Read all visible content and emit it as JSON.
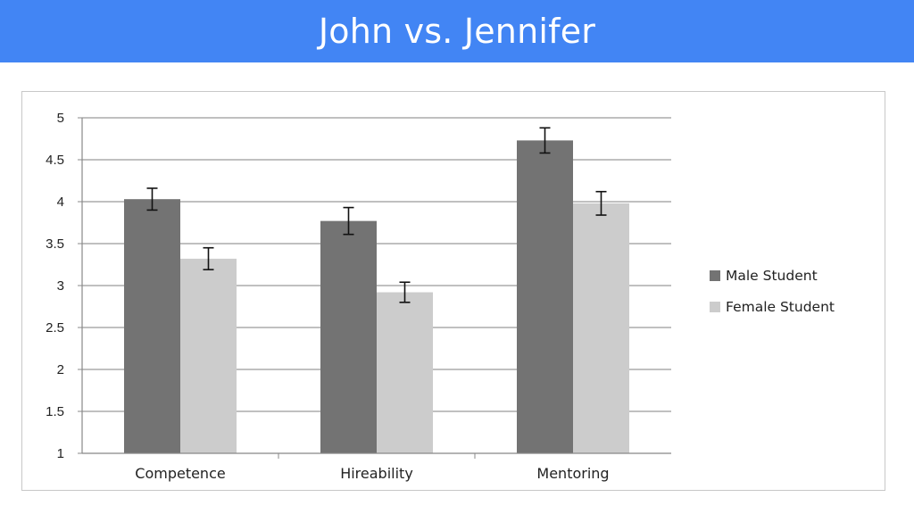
{
  "slide": {
    "title": "John vs. Jennifer",
    "accent_color": "#4285f4"
  },
  "chart_data": {
    "type": "bar",
    "categories": [
      "Competence",
      "Hireability",
      "Mentoring"
    ],
    "series": [
      {
        "name": "Male Student",
        "color": "#737373",
        "values": [
          4.03,
          3.77,
          4.73
        ],
        "error": [
          0.13,
          0.16,
          0.15
        ]
      },
      {
        "name": "Female Student",
        "color": "#cccccc",
        "values": [
          3.32,
          2.92,
          3.98
        ],
        "error": [
          0.13,
          0.12,
          0.14
        ]
      }
    ],
    "ylim": [
      1,
      5
    ],
    "yticks": [
      "1",
      "1.5",
      "2",
      "2.5",
      "3",
      "3.5",
      "4",
      "4.5",
      "5"
    ],
    "title": "",
    "xlabel": "",
    "ylabel": "",
    "grid": true,
    "legend_position": "right"
  }
}
